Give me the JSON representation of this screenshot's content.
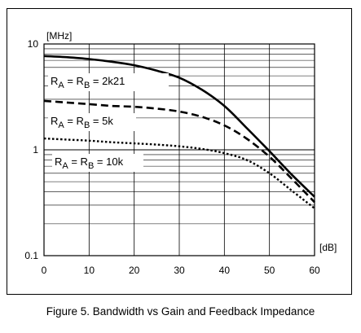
{
  "caption": "Figure 5. Bandwidth vs Gain and Feedback Impedance",
  "chart_data": {
    "type": "line",
    "title": "",
    "xlabel": "[dB]",
    "ylabel": "[MHz]",
    "xlim": [
      0,
      60
    ],
    "ylim": [
      0.1,
      10
    ],
    "yscale": "log",
    "grid": true,
    "x_ticks": [
      0,
      10,
      20,
      30,
      40,
      50,
      60
    ],
    "x_tick_labels": [
      "0",
      "10",
      "20",
      "30",
      "40",
      "50",
      "60"
    ],
    "y_ticks": [
      0.1,
      1,
      10
    ],
    "y_tick_labels": [
      "0.1",
      "1",
      "10"
    ],
    "series": [
      {
        "name": "RA = RB = 2k21",
        "label": {
          "main1": "R",
          "sub1": "A",
          "main2": " = R",
          "sub2": "B",
          "main3": " = 2k21"
        },
        "style": "solid",
        "x": [
          0,
          5,
          10,
          15,
          20,
          25,
          30,
          35,
          40,
          45,
          50,
          55,
          60
        ],
        "y": [
          7.7,
          7.5,
          7.2,
          6.8,
          6.3,
          5.6,
          4.8,
          3.7,
          2.6,
          1.6,
          0.97,
          0.58,
          0.36
        ]
      },
      {
        "name": "RA = RB = 5k",
        "label": {
          "main1": "R",
          "sub1": "A",
          "main2": " = R",
          "sub2": "B",
          "main3": " = 5k"
        },
        "style": "dashed",
        "x": [
          0,
          5,
          10,
          15,
          20,
          25,
          30,
          35,
          40,
          45,
          50,
          55,
          60
        ],
        "y": [
          2.9,
          2.8,
          2.7,
          2.6,
          2.55,
          2.45,
          2.3,
          2.05,
          1.7,
          1.27,
          0.86,
          0.53,
          0.32
        ]
      },
      {
        "name": "RA = RB = 10k",
        "label": {
          "main1": "R",
          "sub1": "A",
          "main2": " = R",
          "sub2": "B",
          "main3": " = 10k"
        },
        "style": "dotted",
        "x": [
          0,
          5,
          10,
          15,
          20,
          25,
          30,
          35,
          40,
          45,
          50,
          55,
          60
        ],
        "y": [
          1.28,
          1.25,
          1.22,
          1.18,
          1.15,
          1.12,
          1.08,
          1.02,
          0.93,
          0.8,
          0.6,
          0.41,
          0.28
        ]
      }
    ]
  }
}
